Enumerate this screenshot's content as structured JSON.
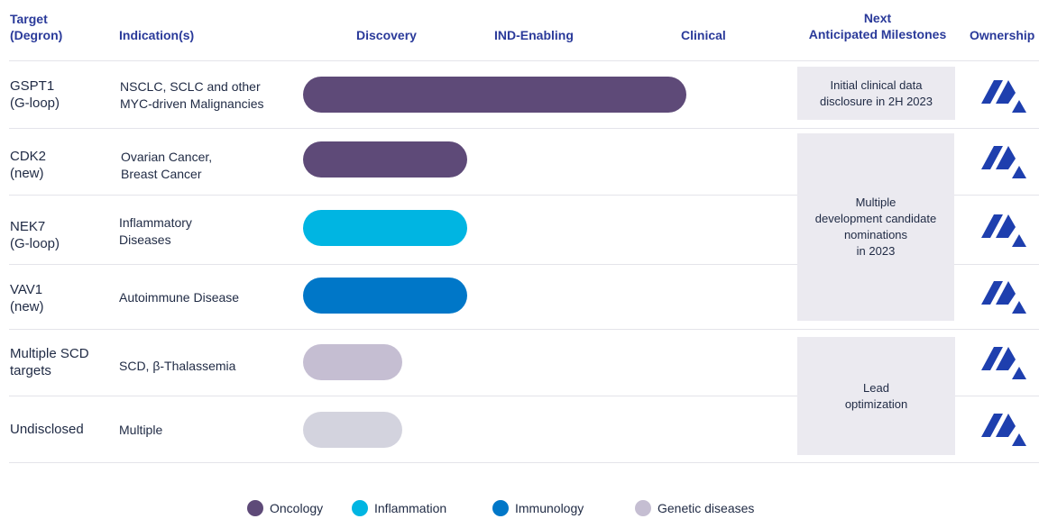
{
  "header": {
    "target": "Target\n(Degron)",
    "indication": "Indication(s)",
    "discovery": "Discovery",
    "ind_enabling": "IND-Enabling",
    "clinical": "Clinical",
    "milestones": "Next\nAnticipated Milestones",
    "ownership": "Ownership"
  },
  "rows": [
    {
      "target": "GSPT1\n(G-loop)",
      "indication": "NSCLC, SCLC and other\nMYC-driven Malignancies",
      "category": "Oncology"
    },
    {
      "target": "CDK2\n(new)",
      "indication": "Ovarian Cancer,\nBreast Cancer",
      "category": "Oncology"
    },
    {
      "target": "NEK7\n(G-loop)",
      "indication": "Inflammatory\nDiseases",
      "category": "Inflammation"
    },
    {
      "target": "VAV1\n(new)",
      "indication": "Autoimmune Disease",
      "category": "Immunology"
    },
    {
      "target": "Multiple SCD\ntargets",
      "indication": "SCD, β-Thalassemia",
      "category": "Genetic diseases"
    },
    {
      "target": "Undisclosed",
      "indication": "Multiple",
      "category": "Genetic diseases"
    }
  ],
  "milestones": [
    "Initial  clinical data\ndisclosure in 2H 2023",
    "Multiple\ndevelopment candidate\nnominations\nin 2023",
    "Lead\noptimization"
  ],
  "legend": [
    {
      "label": "Oncology",
      "color": "#5e4a78"
    },
    {
      "label": "Inflammation",
      "color": "#00b5e2"
    },
    {
      "label": "Immunology",
      "color": "#0077c8"
    },
    {
      "label": "Genetic diseases",
      "color": "#c5bed2"
    }
  ],
  "colors": {
    "oncology": "#5e4a78",
    "inflammation": "#00b5e2",
    "immunology": "#0077c8",
    "genetic": "#c5bed2",
    "undisclosed": "#d3d3de",
    "header_text": "#2a3a9a",
    "logo": "#1e3fae"
  },
  "ownership_icon": "company-logo-icon"
}
